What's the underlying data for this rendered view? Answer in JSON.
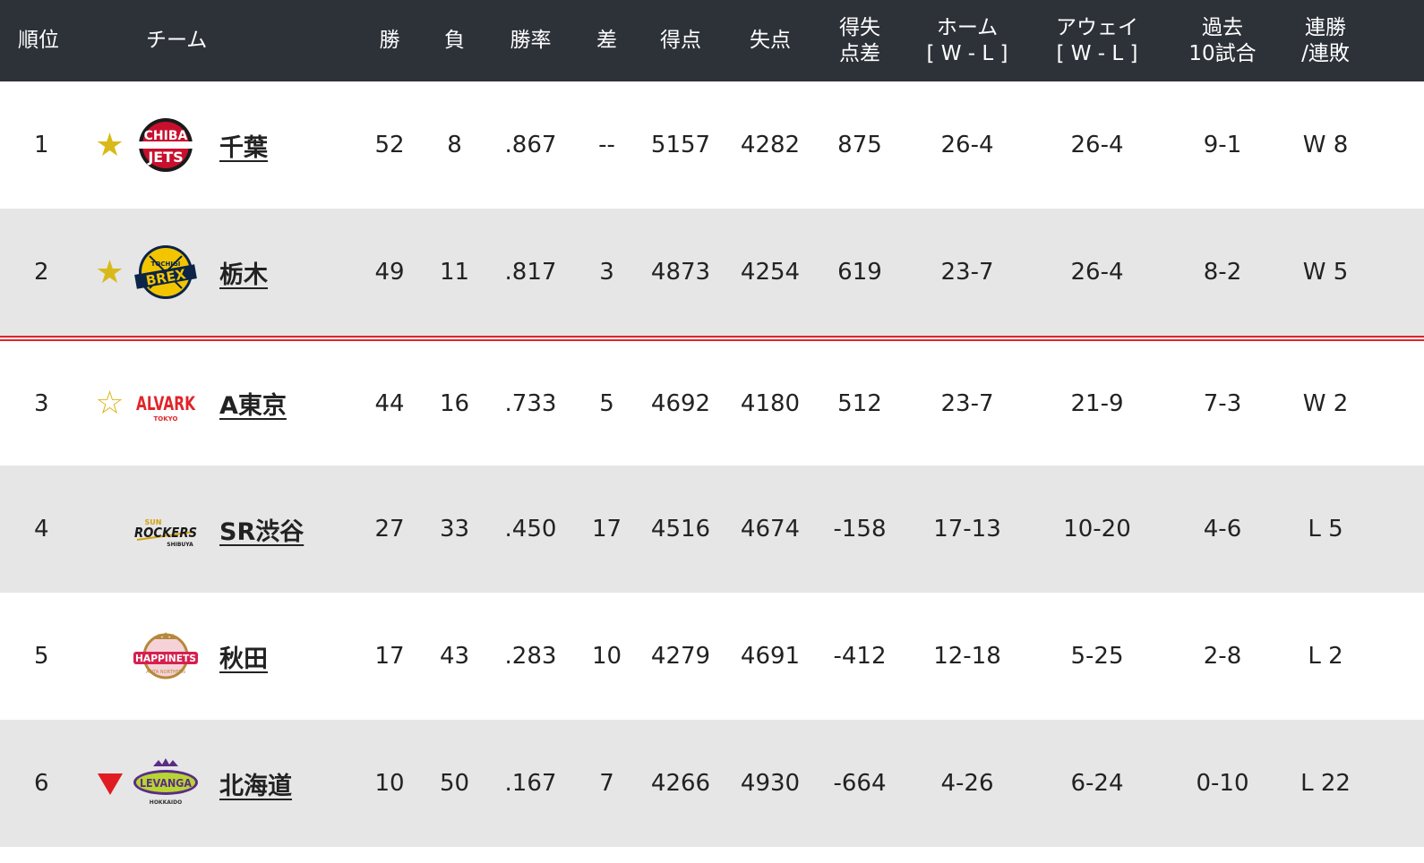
{
  "headers": {
    "rank": "順位",
    "team": "チーム",
    "wins": "勝",
    "losses": "負",
    "pct": "勝率",
    "gb": "差",
    "pf": "得点",
    "pa": "失点",
    "diff_line1": "得失",
    "diff_line2": "点差",
    "home_line1": "ホーム",
    "home_line2": "[ W - L ]",
    "away_line1": "アウェイ",
    "away_line2": "[ W - L ]",
    "last10_line1": "過去",
    "last10_line2": "10試合",
    "streak_line1": "連勝",
    "streak_line2": "/連敗"
  },
  "colors": {
    "header_bg": "#2d3239",
    "row_alt_bg": "#e6e6e6",
    "star": "#d9b91a",
    "playoff_line": "#e0252b",
    "relegation_mark": "#e01b22"
  },
  "rows": [
    {
      "rank": "1",
      "mark": "star-filled",
      "logo": "chiba-jets-logo",
      "team": "千葉",
      "w": "52",
      "l": "8",
      "pct": ".867",
      "gb": "--",
      "pf": "5157",
      "pa": "4282",
      "diff": "875",
      "home": "26-4",
      "away": "26-4",
      "last10": "9-1",
      "streak": "W 8"
    },
    {
      "rank": "2",
      "mark": "star-filled",
      "logo": "tochigi-brex-logo",
      "team": "栃木",
      "w": "49",
      "l": "11",
      "pct": ".817",
      "gb": "3",
      "pf": "4873",
      "pa": "4254",
      "diff": "619",
      "home": "23-7",
      "away": "26-4",
      "last10": "8-2",
      "streak": "W 5"
    },
    {
      "rank": "3",
      "mark": "star-open",
      "logo": "alvark-tokyo-logo",
      "team": "A東京",
      "w": "44",
      "l": "16",
      "pct": ".733",
      "gb": "5",
      "pf": "4692",
      "pa": "4180",
      "diff": "512",
      "home": "23-7",
      "away": "21-9",
      "last10": "7-3",
      "streak": "W 2"
    },
    {
      "rank": "4",
      "mark": "none",
      "logo": "sunrockers-shibuya-logo",
      "team": "SR渋谷",
      "w": "27",
      "l": "33",
      "pct": ".450",
      "gb": "17",
      "pf": "4516",
      "pa": "4674",
      "diff": "-158",
      "home": "17-13",
      "away": "10-20",
      "last10": "4-6",
      "streak": "L 5"
    },
    {
      "rank": "5",
      "mark": "none",
      "logo": "akita-happinets-logo",
      "team": "秋田",
      "w": "17",
      "l": "43",
      "pct": ".283",
      "gb": "10",
      "pf": "4279",
      "pa": "4691",
      "diff": "-412",
      "home": "12-18",
      "away": "5-25",
      "last10": "2-8",
      "streak": "L 2"
    },
    {
      "rank": "6",
      "mark": "down-triangle",
      "logo": "levanga-hokkaido-logo",
      "team": "北海道",
      "w": "10",
      "l": "50",
      "pct": ".167",
      "gb": "7",
      "pf": "4266",
      "pa": "4930",
      "diff": "-664",
      "home": "4-26",
      "away": "6-24",
      "last10": "0-10",
      "streak": "L 22"
    }
  ],
  "logo_text": {
    "chiba_1": "CHIBA",
    "chiba_2": "JETS",
    "brex_small": "TOCHIGI",
    "brex_big": "BREX",
    "alvark_big": "ALVARK",
    "alvark_small": "TOKYO",
    "sr_small": "SUN",
    "sr_big": "ROCKERS",
    "sr_tiny": "SHIBUYA",
    "akita_big": "HAPPINETS",
    "akita_small": "AKITA NORTHERN",
    "levanga_big": "LEVANGA",
    "levanga_small": "HOKKAIDO"
  }
}
